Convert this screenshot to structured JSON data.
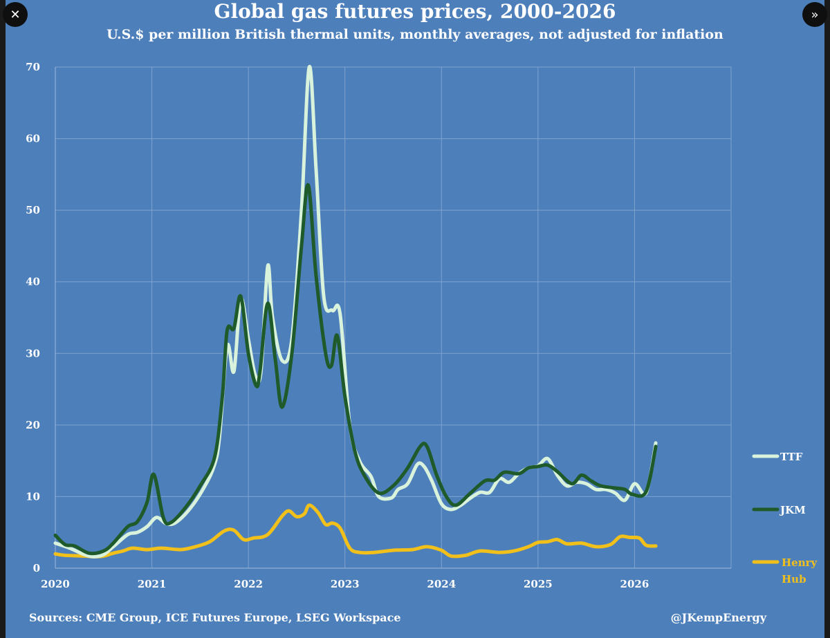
{
  "nav": {
    "close_icon": "close-icon",
    "expand_icon": "double-chevron-right-icon",
    "close_glyph": "✕",
    "expand_glyph": "»"
  },
  "chart_data": {
    "type": "line",
    "title": "Global gas futures prices, 2000-2026",
    "subtitle": "U.S.$ per million British thermal units, monthly averages, not adjusted for inflation",
    "xlabel": "",
    "ylabel": "",
    "xlim": [
      2020,
      2027
    ],
    "ylim": [
      0,
      70
    ],
    "x_ticks": [
      2020,
      2021,
      2022,
      2023,
      2024,
      2025,
      2026
    ],
    "y_ticks": [
      0,
      10,
      20,
      30,
      40,
      50,
      60,
      70
    ],
    "grid": true,
    "legend_position": "right",
    "series": [
      {
        "name": "Henry Hub",
        "color": "#f2c01a",
        "points": [
          [
            2020.0,
            2.0
          ],
          [
            2020.1,
            1.8
          ],
          [
            2020.3,
            1.7
          ],
          [
            2020.4,
            1.6
          ],
          [
            2020.5,
            1.7
          ],
          [
            2020.6,
            2.1
          ],
          [
            2020.7,
            2.4
          ],
          [
            2020.8,
            2.8
          ],
          [
            2020.95,
            2.6
          ],
          [
            2021.1,
            2.8
          ],
          [
            2021.3,
            2.6
          ],
          [
            2021.45,
            3.0
          ],
          [
            2021.6,
            3.7
          ],
          [
            2021.75,
            5.2
          ],
          [
            2021.85,
            5.3
          ],
          [
            2021.95,
            4.0
          ],
          [
            2022.05,
            4.2
          ],
          [
            2022.2,
            4.7
          ],
          [
            2022.35,
            7.3
          ],
          [
            2022.42,
            8.0
          ],
          [
            2022.5,
            7.2
          ],
          [
            2022.58,
            7.6
          ],
          [
            2022.63,
            8.8
          ],
          [
            2022.72,
            7.8
          ],
          [
            2022.8,
            6.1
          ],
          [
            2022.87,
            6.3
          ],
          [
            2022.95,
            5.6
          ],
          [
            2023.05,
            2.8
          ],
          [
            2023.15,
            2.2
          ],
          [
            2023.3,
            2.2
          ],
          [
            2023.5,
            2.5
          ],
          [
            2023.7,
            2.6
          ],
          [
            2023.85,
            3.0
          ],
          [
            2024.0,
            2.5
          ],
          [
            2024.1,
            1.7
          ],
          [
            2024.25,
            1.8
          ],
          [
            2024.4,
            2.4
          ],
          [
            2024.6,
            2.2
          ],
          [
            2024.75,
            2.4
          ],
          [
            2024.9,
            3.0
          ],
          [
            2025.0,
            3.6
          ],
          [
            2025.1,
            3.7
          ],
          [
            2025.2,
            4.0
          ],
          [
            2025.3,
            3.4
          ],
          [
            2025.45,
            3.5
          ],
          [
            2025.6,
            3.0
          ],
          [
            2025.75,
            3.3
          ],
          [
            2025.85,
            4.4
          ],
          [
            2025.95,
            4.3
          ],
          [
            2026.05,
            4.2
          ],
          [
            2026.12,
            3.2
          ],
          [
            2026.22,
            3.1
          ]
        ]
      },
      {
        "name": "TTF",
        "color": "#d8f2dc",
        "points": [
          [
            2020.0,
            3.5
          ],
          [
            2020.15,
            2.8
          ],
          [
            2020.3,
            1.9
          ],
          [
            2020.4,
            1.6
          ],
          [
            2020.5,
            1.9
          ],
          [
            2020.6,
            3.0
          ],
          [
            2020.75,
            4.7
          ],
          [
            2020.85,
            5.0
          ],
          [
            2020.95,
            5.8
          ],
          [
            2021.05,
            7.1
          ],
          [
            2021.15,
            6.2
          ],
          [
            2021.25,
            6.4
          ],
          [
            2021.4,
            8.4
          ],
          [
            2021.55,
            11.5
          ],
          [
            2021.65,
            14.5
          ],
          [
            2021.7,
            18.3
          ],
          [
            2021.78,
            31.0
          ],
          [
            2021.85,
            27.5
          ],
          [
            2021.92,
            37.6
          ],
          [
            2022.0,
            32.0
          ],
          [
            2022.07,
            27.0
          ],
          [
            2022.13,
            27.5
          ],
          [
            2022.2,
            42.2
          ],
          [
            2022.25,
            35.0
          ],
          [
            2022.35,
            29.0
          ],
          [
            2022.45,
            32.0
          ],
          [
            2022.55,
            50.0
          ],
          [
            2022.63,
            70.0
          ],
          [
            2022.7,
            56.0
          ],
          [
            2022.78,
            38.0
          ],
          [
            2022.87,
            36.0
          ],
          [
            2022.95,
            35.5
          ],
          [
            2023.05,
            20.0
          ],
          [
            2023.15,
            15.0
          ],
          [
            2023.27,
            12.8
          ],
          [
            2023.35,
            10.0
          ],
          [
            2023.48,
            9.8
          ],
          [
            2023.55,
            11.0
          ],
          [
            2023.65,
            11.8
          ],
          [
            2023.75,
            14.5
          ],
          [
            2023.82,
            14.2
          ],
          [
            2023.9,
            12.2
          ],
          [
            2024.0,
            9.0
          ],
          [
            2024.1,
            8.2
          ],
          [
            2024.2,
            8.8
          ],
          [
            2024.3,
            9.8
          ],
          [
            2024.4,
            10.6
          ],
          [
            2024.5,
            10.6
          ],
          [
            2024.6,
            12.5
          ],
          [
            2024.7,
            12.0
          ],
          [
            2024.8,
            13.2
          ],
          [
            2024.9,
            14.0
          ],
          [
            2025.0,
            14.3
          ],
          [
            2025.1,
            15.3
          ],
          [
            2025.2,
            13.0
          ],
          [
            2025.3,
            11.5
          ],
          [
            2025.4,
            12.0
          ],
          [
            2025.5,
            11.8
          ],
          [
            2025.6,
            11.0
          ],
          [
            2025.7,
            11.0
          ],
          [
            2025.8,
            10.5
          ],
          [
            2025.9,
            9.5
          ],
          [
            2026.0,
            11.8
          ],
          [
            2026.1,
            10.3
          ],
          [
            2026.15,
            12.0
          ],
          [
            2026.22,
            17.5
          ]
        ]
      },
      {
        "name": "JKM",
        "color": "#1e5a2a",
        "points": [
          [
            2020.0,
            4.6
          ],
          [
            2020.1,
            3.3
          ],
          [
            2020.2,
            3.1
          ],
          [
            2020.35,
            2.1
          ],
          [
            2020.5,
            2.4
          ],
          [
            2020.6,
            3.5
          ],
          [
            2020.75,
            5.8
          ],
          [
            2020.85,
            6.5
          ],
          [
            2020.95,
            9.2
          ],
          [
            2021.02,
            13.1
          ],
          [
            2021.12,
            7.0
          ],
          [
            2021.2,
            6.4
          ],
          [
            2021.35,
            8.5
          ],
          [
            2021.5,
            11.5
          ],
          [
            2021.65,
            15.5
          ],
          [
            2021.73,
            24.0
          ],
          [
            2021.78,
            33.2
          ],
          [
            2021.85,
            33.5
          ],
          [
            2021.92,
            38.0
          ],
          [
            2022.0,
            30.0
          ],
          [
            2022.08,
            25.5
          ],
          [
            2022.12,
            27.5
          ],
          [
            2022.2,
            37.0
          ],
          [
            2022.28,
            29.0
          ],
          [
            2022.35,
            22.5
          ],
          [
            2022.45,
            30.0
          ],
          [
            2022.55,
            45.0
          ],
          [
            2022.62,
            53.5
          ],
          [
            2022.7,
            41.0
          ],
          [
            2022.8,
            30.0
          ],
          [
            2022.86,
            28.3
          ],
          [
            2022.92,
            32.5
          ],
          [
            2023.0,
            24.0
          ],
          [
            2023.1,
            16.5
          ],
          [
            2023.2,
            13.0
          ],
          [
            2023.35,
            10.5
          ],
          [
            2023.5,
            11.5
          ],
          [
            2023.65,
            14.0
          ],
          [
            2023.78,
            17.0
          ],
          [
            2023.85,
            17.0
          ],
          [
            2023.95,
            13.0
          ],
          [
            2024.05,
            10.0
          ],
          [
            2024.15,
            8.8
          ],
          [
            2024.3,
            10.5
          ],
          [
            2024.45,
            12.2
          ],
          [
            2024.55,
            12.3
          ],
          [
            2024.65,
            13.4
          ],
          [
            2024.8,
            13.2
          ],
          [
            2024.9,
            14.0
          ],
          [
            2025.0,
            14.2
          ],
          [
            2025.1,
            14.4
          ],
          [
            2025.2,
            13.5
          ],
          [
            2025.35,
            11.8
          ],
          [
            2025.45,
            13.0
          ],
          [
            2025.55,
            12.2
          ],
          [
            2025.65,
            11.5
          ],
          [
            2025.8,
            11.2
          ],
          [
            2025.9,
            11.0
          ],
          [
            2025.98,
            10.3
          ],
          [
            2026.12,
            10.7
          ],
          [
            2026.22,
            17.0
          ]
        ]
      }
    ],
    "legend": [
      {
        "label": "TTF",
        "color": "#d8f2dc"
      },
      {
        "label": "JKM",
        "color": "#1e5a2a"
      },
      {
        "label_lines": [
          "Henry",
          "Hub"
        ],
        "color": "#f2c01a"
      }
    ],
    "source": "Sources: CME Group, ICE Futures Europe, LSEG Workspace",
    "handle": "@JKempEnergy"
  }
}
